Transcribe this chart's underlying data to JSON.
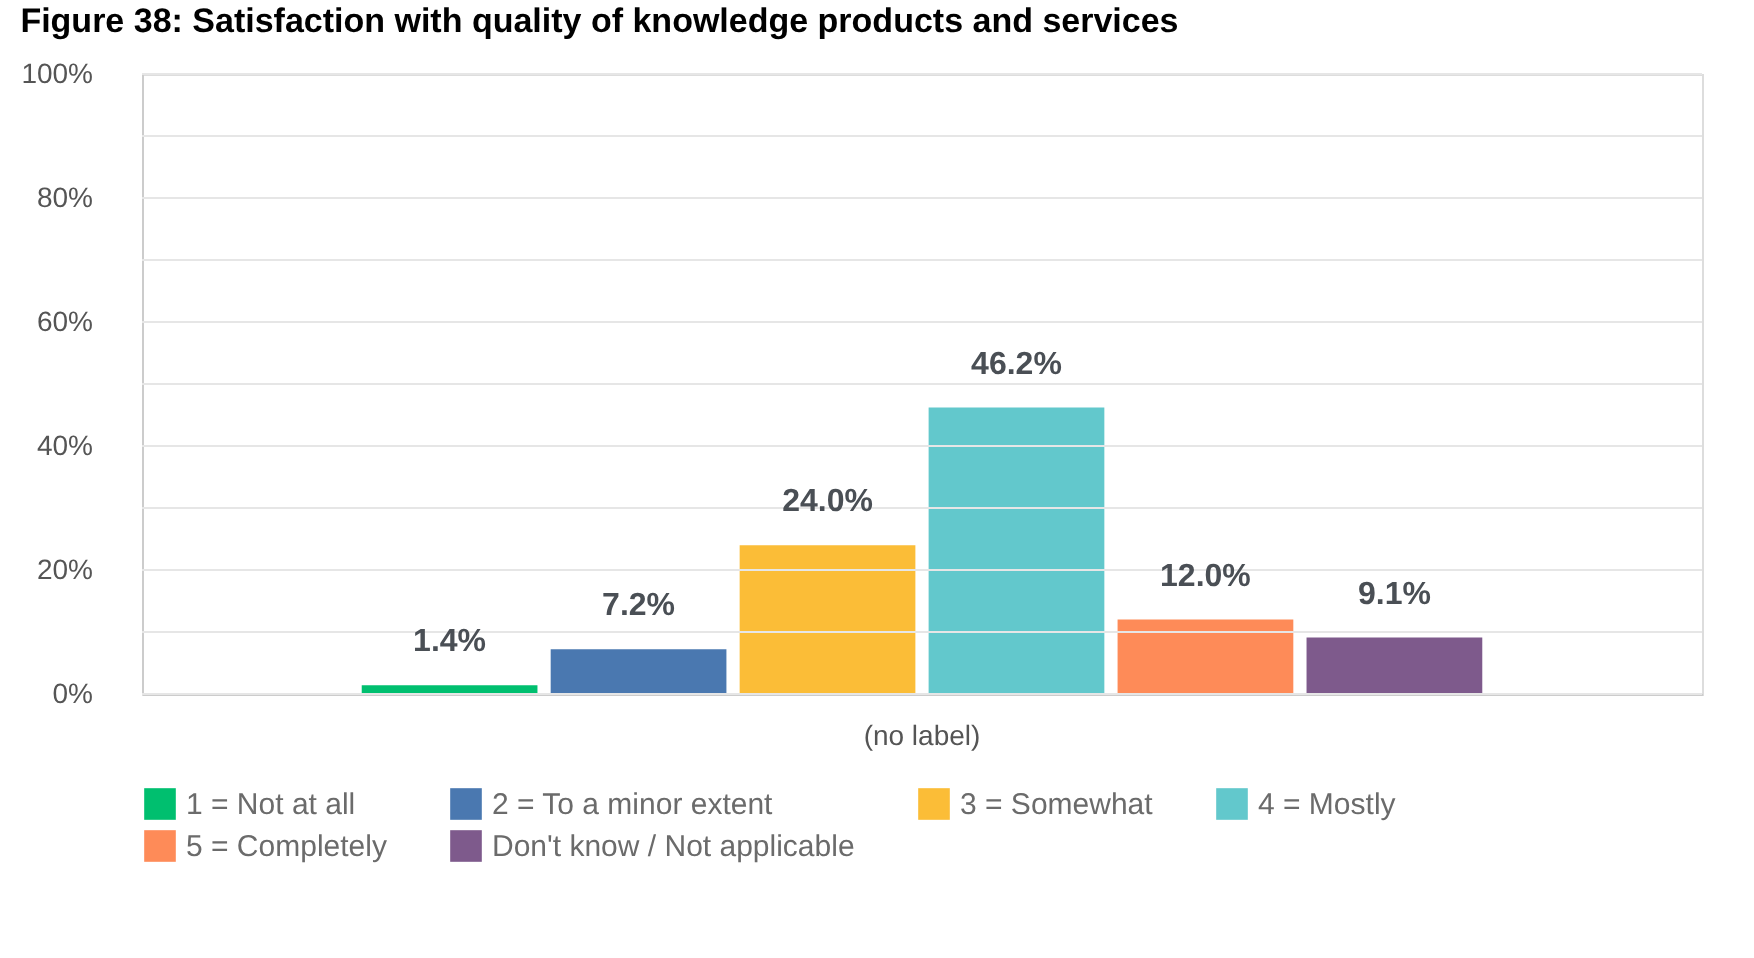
{
  "chart_data": {
    "type": "bar",
    "title": "Figure 38: Satisfaction with quality of knowledge products and services",
    "categories": [
      "(no label)"
    ],
    "series": [
      {
        "name": "1 = Not at all",
        "color": "#00bf6f",
        "values": [
          1.4
        ],
        "value_labels": [
          "1.4%"
        ]
      },
      {
        "name": "2 = To a minor extent",
        "color": "#4a78b0",
        "values": [
          7.2
        ],
        "value_labels": [
          "7.2%"
        ]
      },
      {
        "name": "3 = Somewhat",
        "color": "#fbbd37",
        "values": [
          24.0
        ],
        "value_labels": [
          "24.0%"
        ]
      },
      {
        "name": "4 = Mostly",
        "color": "#62c8cc",
        "values": [
          46.2
        ],
        "value_labels": [
          "46.2%"
        ]
      },
      {
        "name": "5 = Completely",
        "color": "#fe8b58",
        "values": [
          12.0
        ],
        "value_labels": [
          "12.0%"
        ]
      },
      {
        "name": "Don't know / Not applicable",
        "color": "#7e5a8c",
        "values": [
          9.1
        ],
        "value_labels": [
          "9.1%"
        ]
      }
    ],
    "ylim": [
      0,
      100
    ],
    "yticks": [
      {
        "value": 0,
        "label": "0%"
      },
      {
        "value": 10,
        "label": null
      },
      {
        "value": 20,
        "label": "20%"
      },
      {
        "value": 30,
        "label": null
      },
      {
        "value": 40,
        "label": "40%"
      },
      {
        "value": 50,
        "label": null
      },
      {
        "value": 60,
        "label": "60%"
      },
      {
        "value": 70,
        "label": null
      },
      {
        "value": 80,
        "label": "80%"
      },
      {
        "value": 90,
        "label": null
      },
      {
        "value": 100,
        "label": "100%"
      }
    ],
    "grid": "y",
    "legend": "bottom"
  }
}
